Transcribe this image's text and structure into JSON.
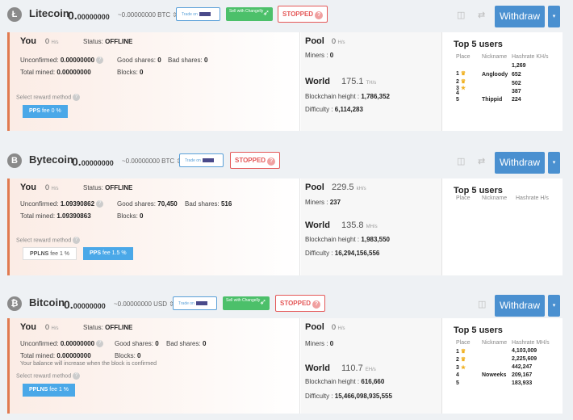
{
  "accent_color": "#4a90d0",
  "stopped_color": "#e45858",
  "cards": [
    {
      "name": "Litecoin",
      "balance_int": "0.",
      "balance_dec": "00000000",
      "fiat": "~0.00000000",
      "currency": "BTC",
      "trade_label": "Trade on",
      "changelly_label": "Sell with Changelly",
      "stopped_label": "STOPPED",
      "withdraw_label": "Withdraw",
      "you": {
        "title": "You",
        "hashrate": "0",
        "hashrate_unit": "H/s",
        "status_label": "Status:",
        "status": "OFFLINE",
        "unconfirmed_label": "Unconfirmed:",
        "unconfirmed": "0.00000000",
        "good_label": "Good shares:",
        "good": "0",
        "bad_label": "Bad shares:",
        "bad": "0",
        "total_label": "Total mined:",
        "total": "0.00000000",
        "blocks_label": "Blocks:",
        "blocks": "0",
        "reward_label": "Select reward method",
        "methods": [
          {
            "name": "PPS",
            "fee": "fee 0 %"
          }
        ]
      },
      "pool": {
        "title": "Pool",
        "hashrate": "0",
        "hashrate_unit": "H/s",
        "miners_label": "Miners :",
        "miners": "0"
      },
      "world": {
        "title": "World",
        "hashrate": "175.1",
        "hashrate_unit": "TH/s",
        "height_label": "Blockchain height :",
        "height": "1,786,352",
        "difficulty_label": "Difficulty :",
        "difficulty": "6,114,283"
      },
      "top5": {
        "title": "Top 5 users",
        "col_place": "Place",
        "col_nick": "Nickname",
        "col_rate": "Hashrate KH/s",
        "rows": [
          {
            "place": "1",
            "nick": "",
            "rate": "1,269"
          },
          {
            "place": "2",
            "nick": "Angloody",
            "rate": "652"
          },
          {
            "place": "3",
            "nick": "",
            "rate": "502"
          },
          {
            "place": "4",
            "nick": "",
            "rate": "387"
          },
          {
            "place": "5",
            "nick": "Thippid",
            "rate": "224"
          }
        ]
      }
    },
    {
      "name": "Bytecoin",
      "balance_int": "0.",
      "balance_dec": "00000000",
      "fiat": "~0.00000000",
      "currency": "BTC",
      "trade_label": "Trade on",
      "stopped_label": "STOPPED",
      "withdraw_label": "Withdraw",
      "you": {
        "title": "You",
        "hashrate": "0",
        "hashrate_unit": "H/s",
        "status_label": "Status:",
        "status": "OFFLINE",
        "unconfirmed_label": "Unconfirmed:",
        "unconfirmed": "1.09390862",
        "good_label": "Good shares:",
        "good": "70,450",
        "bad_label": "Bad shares:",
        "bad": "516",
        "total_label": "Total mined:",
        "total": "1.09390863",
        "blocks_label": "Blocks:",
        "blocks": "0",
        "reward_label": "Select reward method",
        "methods": [
          {
            "name": "PPLNS",
            "fee": "fee 1 %"
          },
          {
            "name": "PPS",
            "fee": "fee 1.5 %"
          }
        ]
      },
      "pool": {
        "title": "Pool",
        "hashrate": "229.5",
        "hashrate_unit": "kH/s",
        "miners_label": "Miners :",
        "miners": "237"
      },
      "world": {
        "title": "World",
        "hashrate": "135.8",
        "hashrate_unit": "MH/s",
        "height_label": "Blockchain height :",
        "height": "1,983,550",
        "difficulty_label": "Difficulty :",
        "difficulty": "16,294,156,556"
      },
      "top5": {
        "title": "Top 5 users",
        "col_place": "Place",
        "col_nick": "Nickname",
        "col_rate": "Hashrate H/s",
        "rows": []
      }
    },
    {
      "name": "Bitcoin",
      "balance_int": "0.",
      "balance_dec": "00000000",
      "fiat": "~0.00000000",
      "currency": "USD",
      "trade_label": "Trade on",
      "changelly_label": "Sell with Changelly",
      "stopped_label": "STOPPED",
      "withdraw_label": "Withdraw",
      "you": {
        "title": "You",
        "hashrate": "0",
        "hashrate_unit": "H/s",
        "status_label": "Status:",
        "status": "OFFLINE",
        "unconfirmed_label": "Unconfirmed:",
        "unconfirmed": "0.00000000",
        "good_label": "Good shares:",
        "good": "0",
        "bad_label": "Bad shares:",
        "bad": "0",
        "total_label": "Total mined:",
        "total": "0.00000000",
        "blocks_label": "Blocks:",
        "blocks": "0",
        "note": "Your balance will increase when the block is confirmed",
        "reward_label": "Select reward method",
        "methods": [
          {
            "name": "PPLNS",
            "fee": "fee 1 %"
          }
        ]
      },
      "pool": {
        "title": "Pool",
        "hashrate": "0",
        "hashrate_unit": "H/s",
        "miners_label": "Miners :",
        "miners": "0"
      },
      "world": {
        "title": "World",
        "hashrate": "110.7",
        "hashrate_unit": "EH/s",
        "height_label": "Blockchain height :",
        "height": "616,660",
        "difficulty_label": "Difficulty :",
        "difficulty": "15,466,098,935,555"
      },
      "top5": {
        "title": "Top 5 users",
        "col_place": "Place",
        "col_nick": "Nickname",
        "col_rate": "Hashrate MH/s",
        "rows": [
          {
            "place": "1",
            "nick": "",
            "rate": "4,103,009"
          },
          {
            "place": "2",
            "nick": "",
            "rate": "2,225,609"
          },
          {
            "place": "3",
            "nick": "",
            "rate": "442,247"
          },
          {
            "place": "4",
            "nick": "Noweeks",
            "rate": "209,167"
          },
          {
            "place": "5",
            "nick": "",
            "rate": "183,933"
          }
        ]
      }
    }
  ]
}
